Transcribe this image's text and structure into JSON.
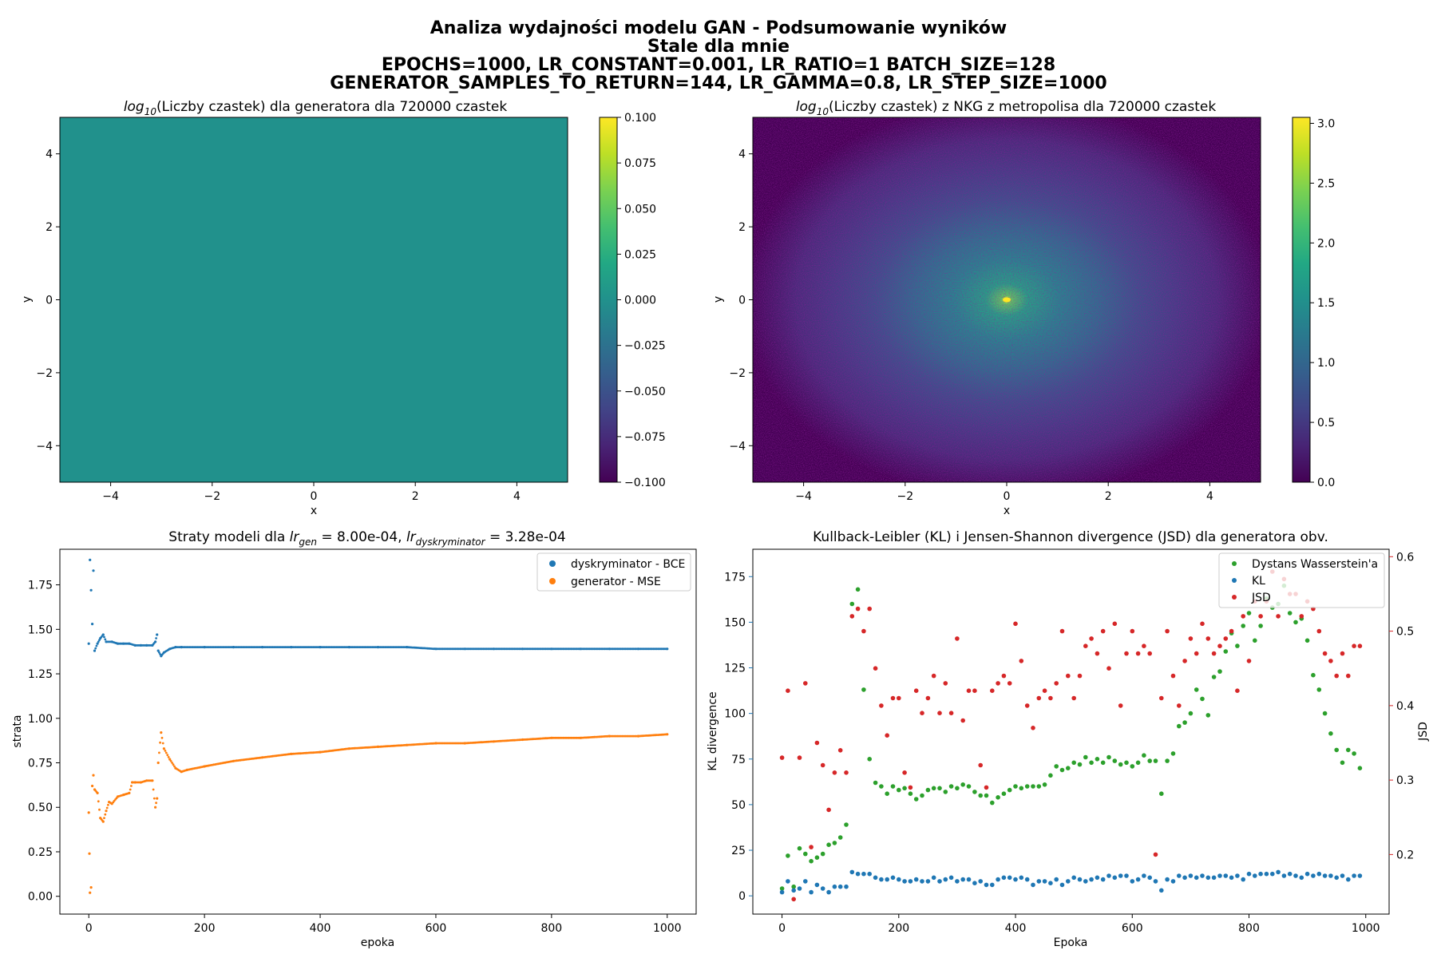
{
  "figure": {
    "title_lines": [
      "Analiza wydajności modelu GAN - Podsumowanie wyników",
      "Stale dla mnie",
      "EPOCHS=1000, LR_CONSTANT=0.001, LR_RATIO=1 BATCH_SIZE=128",
      "GENERATOR_SAMPLES_TO_RETURN=144, LR_GAMMA=0.8, LR_STEP_SIZE=1000"
    ]
  },
  "chart_data": [
    {
      "type": "heatmap",
      "title_prefix": "log",
      "title_sub": "10",
      "title_rest": "(Liczby czastek) dla generatora dla 720000 czastek",
      "xlabel": "x",
      "ylabel": "y",
      "xlim": [
        -5,
        5
      ],
      "ylim": [
        -5,
        5
      ],
      "xticks": [
        -4,
        -2,
        0,
        2,
        4
      ],
      "yticks": [
        -4,
        -2,
        0,
        2,
        4
      ],
      "xtick_labels": [
        "−4",
        "−2",
        "0",
        "2",
        "4"
      ],
      "ytick_labels": [
        "−4",
        "−2",
        "0",
        "2",
        "4"
      ],
      "colormap": "viridis",
      "fill_color": "#21918c",
      "uniform_value": 0.0,
      "colorbar": {
        "min": -0.1,
        "max": 0.1,
        "ticks": [
          -0.1,
          -0.075,
          -0.05,
          -0.025,
          0.0,
          0.025,
          0.05,
          0.075,
          0.1
        ],
        "tick_labels": [
          "−0.100",
          "−0.075",
          "−0.050",
          "−0.025",
          "0.000",
          "0.025",
          "0.050",
          "0.075",
          "0.100"
        ]
      }
    },
    {
      "type": "heatmap",
      "title_prefix": "log",
      "title_sub": "10",
      "title_rest": "(Liczby czastek) z NKG z metropolisa dla 720000 czastek",
      "xlabel": "x",
      "ylabel": "y",
      "xlim": [
        -5,
        5
      ],
      "ylim": [
        -5,
        5
      ],
      "xticks": [
        -4,
        -2,
        0,
        2,
        4
      ],
      "yticks": [
        -4,
        -2,
        0,
        2,
        4
      ],
      "xtick_labels": [
        "−4",
        "−2",
        "0",
        "2",
        "4"
      ],
      "ytick_labels": [
        "−4",
        "−2",
        "0",
        "2",
        "4"
      ],
      "colormap": "viridis",
      "peak_value": 3.05,
      "center": [
        0,
        0
      ],
      "colorbar": {
        "min": 0.0,
        "max": 3.05,
        "ticks": [
          0.0,
          0.5,
          1.0,
          1.5,
          2.0,
          2.5,
          3.0
        ],
        "tick_labels": [
          "0.0",
          "0.5",
          "1.0",
          "1.5",
          "2.0",
          "2.5",
          "3.0"
        ]
      }
    },
    {
      "type": "scatter",
      "title_prefix": "Straty modeli dla ",
      "title_gen_sym": "lr",
      "title_gen_sub": "gen",
      "title_mid": " = 8.00e-04, ",
      "title_dis_sym": "lr",
      "title_dis_sub": "dyskryminator",
      "title_end": " = 3.28e-04",
      "xlabel": "epoka",
      "ylabel": "strata",
      "xlim": [
        -50,
        1050
      ],
      "ylim": [
        -0.1,
        1.95
      ],
      "xticks": [
        0,
        200,
        400,
        600,
        800,
        1000
      ],
      "yticks": [
        0.0,
        0.25,
        0.5,
        0.75,
        1.0,
        1.25,
        1.5,
        1.75
      ],
      "xtick_labels": [
        "0",
        "200",
        "400",
        "600",
        "800",
        "1000"
      ],
      "ytick_labels": [
        "0.00",
        "0.25",
        "0.50",
        "0.75",
        "1.00",
        "1.25",
        "1.50",
        "1.75"
      ],
      "legend": "top-right",
      "series": [
        {
          "name": "dyskryminator - BCE",
          "color": "#1f77b4",
          "x": [
            0,
            2,
            4,
            6,
            8,
            10,
            15,
            20,
            25,
            30,
            40,
            50,
            60,
            70,
            80,
            90,
            100,
            110,
            115,
            118,
            120,
            125,
            130,
            140,
            150,
            160,
            200,
            250,
            300,
            350,
            400,
            450,
            500,
            550,
            600,
            650,
            700,
            750,
            800,
            850,
            900,
            950,
            1000
          ],
          "y": [
            1.42,
            1.89,
            1.72,
            1.53,
            1.83,
            1.38,
            1.42,
            1.45,
            1.47,
            1.43,
            1.43,
            1.42,
            1.42,
            1.42,
            1.41,
            1.41,
            1.41,
            1.41,
            1.43,
            1.47,
            1.38,
            1.35,
            1.37,
            1.39,
            1.4,
            1.4,
            1.4,
            1.4,
            1.4,
            1.4,
            1.4,
            1.4,
            1.4,
            1.4,
            1.39,
            1.39,
            1.39,
            1.39,
            1.39,
            1.39,
            1.39,
            1.39,
            1.39
          ]
        },
        {
          "name": "generator - MSE",
          "color": "#ff7f0e",
          "x": [
            0,
            1,
            2,
            4,
            6,
            8,
            10,
            15,
            20,
            25,
            30,
            35,
            40,
            50,
            60,
            70,
            75,
            80,
            90,
            100,
            110,
            115,
            118,
            120,
            125,
            130,
            140,
            150,
            160,
            170,
            200,
            250,
            300,
            350,
            400,
            450,
            500,
            550,
            600,
            650,
            700,
            750,
            800,
            850,
            900,
            950,
            1000
          ],
          "y": [
            0.47,
            0.24,
            0.02,
            0.05,
            0.62,
            0.68,
            0.6,
            0.58,
            0.44,
            0.42,
            0.48,
            0.53,
            0.52,
            0.56,
            0.57,
            0.58,
            0.64,
            0.64,
            0.64,
            0.65,
            0.65,
            0.5,
            0.55,
            0.75,
            0.92,
            0.83,
            0.77,
            0.72,
            0.7,
            0.71,
            0.73,
            0.76,
            0.78,
            0.8,
            0.81,
            0.83,
            0.84,
            0.85,
            0.86,
            0.86,
            0.87,
            0.88,
            0.89,
            0.89,
            0.9,
            0.9,
            0.91
          ]
        }
      ]
    },
    {
      "type": "scatter",
      "title": "Kullback-Leibler (KL) i Jensen-Shannon divergence (JSD) dla generatora obv.",
      "xlabel": "Epoka",
      "ylabel": "KL divergence",
      "ylabel_right": "JSD",
      "xlim": [
        -50,
        1040
      ],
      "ylim": [
        -10,
        190
      ],
      "ylim_right": [
        0.12,
        0.61
      ],
      "xticks": [
        0,
        200,
        400,
        600,
        800,
        1000
      ],
      "yticks": [
        0,
        25,
        50,
        75,
        100,
        125,
        150,
        175
      ],
      "yticks_right": [
        0.2,
        0.3,
        0.4,
        0.5,
        0.6
      ],
      "xtick_labels": [
        "0",
        "200",
        "400",
        "600",
        "800",
        "1000"
      ],
      "ytick_labels": [
        "0",
        "25",
        "50",
        "75",
        "100",
        "125",
        "150",
        "175"
      ],
      "ytick_right_labels": [
        "0.2",
        "0.3",
        "0.4",
        "0.5",
        "0.6"
      ],
      "legend": "top-right",
      "axis_left_color": "#1f77b4",
      "axis_right_color": "#d62728",
      "series": [
        {
          "name": "Dystans Wasserstein'a",
          "color": "#2ca02c",
          "axis": "left",
          "x": [
            0,
            10,
            20,
            30,
            40,
            50,
            60,
            70,
            80,
            90,
            100,
            110,
            120,
            130,
            140,
            150,
            160,
            170,
            180,
            190,
            200,
            210,
            220,
            230,
            240,
            250,
            260,
            270,
            280,
            290,
            300,
            310,
            320,
            330,
            340,
            350,
            360,
            370,
            380,
            390,
            400,
            410,
            420,
            430,
            440,
            450,
            460,
            470,
            480,
            490,
            500,
            510,
            520,
            530,
            540,
            550,
            560,
            570,
            580,
            590,
            600,
            610,
            620,
            630,
            640,
            650,
            660,
            670,
            680,
            690,
            700,
            710,
            720,
            730,
            740,
            750,
            760,
            770,
            780,
            790,
            800,
            810,
            820,
            830,
            840,
            850,
            860,
            870,
            880,
            890,
            900,
            910,
            920,
            930,
            940,
            950,
            960,
            970,
            980,
            990
          ],
          "y": [
            4,
            22,
            5,
            26,
            23,
            19,
            21,
            23,
            28,
            29,
            32,
            39,
            160,
            168,
            113,
            75,
            62,
            60,
            56,
            60,
            58,
            59,
            56,
            53,
            55,
            58,
            59,
            59,
            57,
            60,
            59,
            61,
            60,
            57,
            55,
            55,
            51,
            54,
            56,
            58,
            60,
            59,
            60,
            60,
            60,
            61,
            66,
            71,
            69,
            70,
            73,
            72,
            76,
            73,
            75,
            73,
            76,
            74,
            72,
            73,
            71,
            73,
            77,
            74,
            74,
            56,
            74,
            78,
            93,
            95,
            100,
            113,
            108,
            99,
            120,
            123,
            134,
            144,
            137,
            148,
            155,
            140,
            148,
            163,
            158,
            160,
            170,
            155,
            150,
            152,
            140,
            121,
            113,
            100,
            89,
            80,
            73,
            80,
            78,
            70
          ]
        },
        {
          "name": "KL",
          "color": "#1f77b4",
          "axis": "left",
          "x": [
            0,
            10,
            20,
            30,
            40,
            50,
            60,
            70,
            80,
            90,
            100,
            110,
            120,
            130,
            140,
            150,
            160,
            170,
            180,
            190,
            200,
            210,
            220,
            230,
            240,
            250,
            260,
            270,
            280,
            290,
            300,
            310,
            320,
            330,
            340,
            350,
            360,
            370,
            380,
            390,
            400,
            410,
            420,
            430,
            440,
            450,
            460,
            470,
            480,
            490,
            500,
            510,
            520,
            530,
            540,
            550,
            560,
            570,
            580,
            590,
            600,
            610,
            620,
            630,
            640,
            650,
            660,
            670,
            680,
            690,
            700,
            710,
            720,
            730,
            740,
            750,
            760,
            770,
            780,
            790,
            800,
            810,
            820,
            830,
            840,
            850,
            860,
            870,
            880,
            890,
            900,
            910,
            920,
            930,
            940,
            950,
            960,
            970,
            980,
            990
          ],
          "y": [
            2,
            8,
            3,
            4,
            8,
            2,
            6,
            4,
            2,
            5,
            5,
            5,
            13,
            12,
            12,
            12,
            10,
            9,
            9,
            10,
            9,
            8,
            8,
            9,
            8,
            8,
            10,
            8,
            9,
            10,
            8,
            9,
            9,
            7,
            8,
            6,
            6,
            9,
            10,
            10,
            9,
            10,
            9,
            6,
            8,
            8,
            7,
            9,
            6,
            8,
            10,
            9,
            8,
            9,
            10,
            9,
            11,
            10,
            11,
            11,
            8,
            9,
            11,
            10,
            8,
            3,
            9,
            8,
            11,
            10,
            11,
            10,
            11,
            10,
            10,
            11,
            11,
            10,
            11,
            9,
            12,
            11,
            12,
            12,
            12,
            13,
            11,
            12,
            11,
            10,
            12,
            11,
            12,
            11,
            11,
            10,
            11,
            9,
            11,
            11
          ]
        },
        {
          "name": "JSD",
          "color": "#d62728",
          "axis": "right",
          "x": [
            0,
            10,
            20,
            30,
            40,
            50,
            60,
            70,
            80,
            90,
            100,
            110,
            120,
            130,
            140,
            150,
            160,
            170,
            180,
            190,
            200,
            210,
            220,
            230,
            240,
            250,
            260,
            270,
            280,
            290,
            300,
            310,
            320,
            330,
            340,
            350,
            360,
            370,
            380,
            390,
            400,
            410,
            420,
            430,
            440,
            450,
            460,
            470,
            480,
            490,
            500,
            510,
            520,
            530,
            540,
            550,
            560,
            570,
            580,
            590,
            600,
            610,
            620,
            630,
            640,
            650,
            660,
            670,
            680,
            690,
            700,
            710,
            720,
            730,
            740,
            750,
            760,
            770,
            780,
            790,
            800,
            810,
            820,
            830,
            840,
            850,
            860,
            870,
            880,
            890,
            900,
            910,
            920,
            930,
            940,
            950,
            960,
            970,
            980,
            990
          ],
          "y": [
            0.33,
            0.42,
            0.14,
            0.33,
            0.43,
            0.21,
            0.35,
            0.32,
            0.26,
            0.31,
            0.34,
            0.31,
            0.52,
            0.53,
            0.5,
            0.53,
            0.45,
            0.4,
            0.36,
            0.41,
            0.41,
            0.31,
            0.29,
            0.42,
            0.39,
            0.41,
            0.44,
            0.39,
            0.43,
            0.39,
            0.49,
            0.38,
            0.42,
            0.42,
            0.32,
            0.29,
            0.42,
            0.43,
            0.44,
            0.43,
            0.51,
            0.46,
            0.4,
            0.37,
            0.41,
            0.42,
            0.41,
            0.43,
            0.5,
            0.44,
            0.41,
            0.44,
            0.48,
            0.49,
            0.47,
            0.5,
            0.45,
            0.51,
            0.4,
            0.47,
            0.5,
            0.47,
            0.48,
            0.47,
            0.2,
            0.41,
            0.5,
            0.44,
            0.4,
            0.46,
            0.49,
            0.47,
            0.51,
            0.49,
            0.47,
            0.48,
            0.49,
            0.5,
            0.42,
            0.52,
            0.46,
            0.54,
            0.52,
            0.54,
            0.58,
            0.52,
            0.57,
            0.55,
            0.55,
            0.52,
            0.54,
            0.53,
            0.5,
            0.47,
            0.46,
            0.44,
            0.47,
            0.44,
            0.48,
            0.48
          ]
        }
      ]
    }
  ]
}
